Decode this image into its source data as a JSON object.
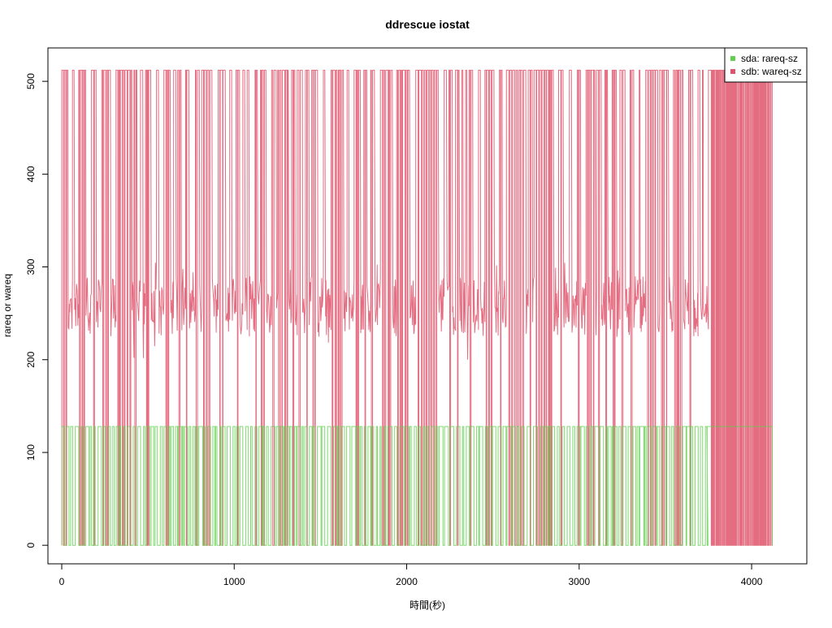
{
  "chart_data": {
    "type": "line",
    "title": "ddrescue iostat",
    "xlabel": "時間(秒)",
    "ylabel": "rareq or wareq",
    "xlim": [
      -80,
      4320
    ],
    "ylim": [
      -20,
      536
    ],
    "x_ticks": [
      0,
      1000,
      2000,
      3000,
      4000
    ],
    "y_ticks": [
      0,
      100,
      200,
      300,
      400,
      500
    ],
    "x_tick_labels": [
      "0",
      "1000",
      "2000",
      "3000",
      "4000"
    ],
    "y_tick_labels": [
      "0",
      "100",
      "200",
      "300",
      "400",
      "500"
    ],
    "grid": false,
    "legend_position": "top-right",
    "series": [
      {
        "name": "sdb: wareq-sz",
        "color": "#DF536B",
        "x_range": [
          0,
          4120
        ],
        "step_levels": [
          0,
          512
        ],
        "busy_band": [
          225,
          290
        ],
        "transitions_approx": 280
      },
      {
        "name": "sda: rareq-sz",
        "color": "#61D04F",
        "x_range": [
          0,
          4120
        ],
        "step_levels": [
          0,
          128
        ],
        "constant_segment": {
          "x_start": 3740,
          "x_end": 4120,
          "value": 128
        }
      }
    ]
  }
}
